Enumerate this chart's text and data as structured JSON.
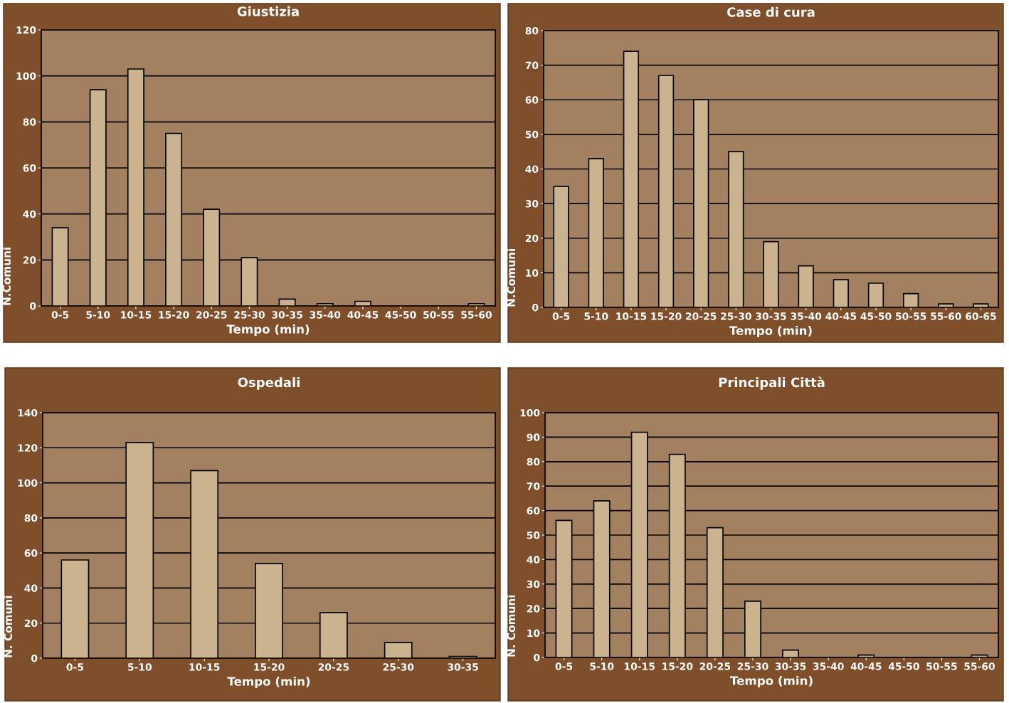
{
  "chart_data": [
    {
      "type": "bar",
      "title": "Giustizia",
      "xlabel": "Tempo (min)",
      "ylabel": "N.Comuni",
      "categories": [
        "0-5",
        "5-10",
        "10-15",
        "15-20",
        "20-25",
        "25-30",
        "30-35",
        "35-40",
        "40-45",
        "45-50",
        "50-55",
        "55-60"
      ],
      "values": [
        34,
        94,
        103,
        75,
        42,
        21,
        3,
        1,
        2,
        0,
        0,
        1
      ],
      "color": "#cbb38f",
      "ylim": [
        0,
        120
      ],
      "yticks": [
        0,
        20,
        40,
        60,
        80,
        100,
        120
      ],
      "grid": "y"
    },
    {
      "type": "bar",
      "title": "Case di cura",
      "xlabel": "Tempo (min)",
      "ylabel": "N.Comuni",
      "categories": [
        "0-5",
        "5-10",
        "10-15",
        "15-20",
        "20-25",
        "25-30",
        "30-35",
        "35-40",
        "40-45",
        "45-50",
        "50-55",
        "55-60",
        "60-65"
      ],
      "values": [
        35,
        43,
        74,
        67,
        60,
        45,
        19,
        12,
        8,
        7,
        4,
        1,
        1
      ],
      "color": "#cbb38f",
      "ylim": [
        0,
        80
      ],
      "yticks": [
        0,
        10,
        20,
        30,
        40,
        50,
        60,
        70,
        80
      ],
      "grid": "y"
    },
    {
      "type": "bar",
      "title": "Ospedali",
      "xlabel": "Tempo (min)",
      "ylabel": "N. Comuni",
      "categories": [
        "0-5",
        "5-10",
        "10-15",
        "15-20",
        "20-25",
        "25-30",
        "30-35"
      ],
      "values": [
        56,
        123,
        107,
        54,
        26,
        9,
        1
      ],
      "color": "#cbb38f",
      "ylim": [
        0,
        140
      ],
      "yticks": [
        0,
        20,
        40,
        60,
        80,
        100,
        120,
        140
      ],
      "grid": "y"
    },
    {
      "type": "bar",
      "title": "Principali Città",
      "xlabel": "Tempo (min)",
      "ylabel": "N. Comuni",
      "categories": [
        "0-5",
        "5-10",
        "10-15",
        "15-20",
        "20-25",
        "25-30",
        "30-35",
        "35-40",
        "40-45",
        "45-50",
        "50-55",
        "55-60"
      ],
      "values": [
        56,
        64,
        92,
        83,
        53,
        23,
        3,
        0,
        1,
        0,
        0,
        1
      ],
      "color": "#cbb38f",
      "ylim": [
        0,
        100
      ],
      "yticks": [
        0,
        10,
        20,
        30,
        40,
        50,
        60,
        70,
        80,
        90,
        100
      ],
      "grid": "y"
    }
  ]
}
